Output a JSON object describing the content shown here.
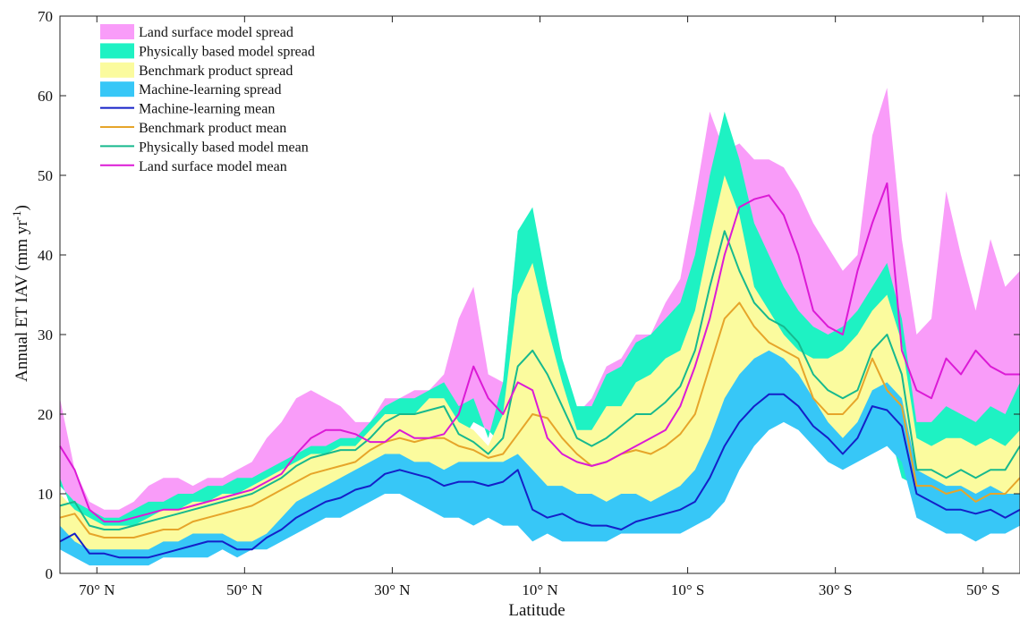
{
  "chart_data": {
    "type": "area",
    "xlabel": "Latitude",
    "ylabel": "Annual ET IAV (mm yr",
    "ylabel_sup": "-1",
    "ylabel_end": ")",
    "xlim": [
      75,
      -55
    ],
    "ylim": [
      0,
      70
    ],
    "x_tick_values": [
      70,
      50,
      30,
      10,
      -10,
      -30,
      -50
    ],
    "x_tick_labels": [
      "70° N",
      "50° N",
      "30° N",
      "10° N",
      "10° S",
      "30° S",
      "50° S"
    ],
    "y_ticks": [
      0,
      10,
      20,
      30,
      40,
      50,
      60,
      70
    ],
    "legend_position": "top-left",
    "lat": [
      75,
      73,
      71,
      69,
      67,
      65,
      63,
      61,
      59,
      57,
      55,
      53,
      51,
      49,
      47,
      45,
      43,
      41,
      39,
      37,
      35,
      33,
      31,
      29,
      27,
      25,
      23,
      21,
      19,
      17,
      15,
      13,
      11,
      9,
      7,
      5,
      3,
      1,
      -1,
      -3,
      -5,
      -7,
      -9,
      -11,
      -13,
      -15,
      -17,
      -19,
      -21,
      -23,
      -25,
      -27,
      -29,
      -31,
      -33,
      -35,
      -37,
      -39,
      -41,
      -43,
      -45,
      -47,
      -49,
      -51,
      -53,
      -55
    ],
    "series": [
      {
        "name": "Land surface model spread",
        "kind": "band",
        "color": "#f99cf9",
        "upper": [
          22,
          13,
          9,
          8,
          8,
          9,
          11,
          12,
          12,
          11,
          12,
          12,
          13,
          14,
          17,
          19,
          22,
          23,
          22,
          21,
          19,
          19,
          22,
          22,
          23,
          23,
          25,
          32,
          36,
          25,
          24,
          43,
          44,
          33,
          26,
          20,
          22,
          26,
          27,
          30,
          30,
          34,
          37,
          47,
          58,
          53,
          54,
          52,
          52,
          51,
          48,
          44,
          41,
          38,
          40,
          55,
          61,
          42,
          30,
          32,
          48,
          40,
          33,
          42,
          36,
          38
        ],
        "lower": [
          12,
          7,
          6,
          6,
          5,
          5,
          6,
          7,
          7,
          7,
          8,
          8,
          9,
          10,
          11,
          12,
          13,
          14,
          14,
          14,
          15,
          16,
          17,
          16,
          14,
          15,
          14,
          16,
          19,
          18,
          16,
          18,
          20,
          16,
          14,
          13,
          12,
          11,
          10,
          11,
          12,
          14,
          17,
          22,
          28,
          32,
          30,
          27,
          24,
          22,
          20,
          18,
          17,
          16,
          17,
          18,
          19,
          12,
          11,
          11,
          13,
          14,
          12,
          14,
          13,
          15
        ]
      },
      {
        "name": "Physically based model spread",
        "kind": "band",
        "color": "#1ef2c3",
        "upper": [
          11,
          9,
          8,
          7,
          7,
          8,
          9,
          9,
          10,
          10,
          11,
          11,
          12,
          12,
          13,
          14,
          15,
          16,
          16,
          17,
          17,
          19,
          21,
          22,
          22,
          23,
          24,
          21,
          22,
          17,
          24,
          43,
          46,
          36,
          27,
          21,
          21,
          25,
          26,
          29,
          30,
          32,
          34,
          40,
          50,
          58,
          52,
          44,
          40,
          36,
          33,
          31,
          30,
          31,
          33,
          36,
          39,
          32,
          19,
          19,
          21,
          20,
          19,
          21,
          20,
          24
        ]
      },
      {
        "name": "Benchmark product spread",
        "kind": "band",
        "color": "#fbfb9e",
        "upper": [
          10,
          8,
          7,
          6,
          6,
          6,
          7,
          8,
          8,
          9,
          9,
          10,
          10,
          11,
          12,
          13,
          14,
          15,
          15,
          16,
          16,
          18,
          20,
          20,
          20,
          22,
          22,
          19,
          18,
          16,
          20,
          35,
          39,
          31,
          24,
          18,
          18,
          21,
          21,
          24,
          25,
          27,
          28,
          33,
          42,
          50,
          45,
          36,
          33,
          30,
          28,
          27,
          27,
          28,
          30,
          33,
          35,
          29,
          17,
          16,
          17,
          17,
          16,
          17,
          16,
          18
        ],
        "lower": [
          5,
          3,
          2,
          2,
          2,
          2,
          2,
          2,
          3,
          3,
          3,
          3,
          3,
          4,
          5,
          6,
          7,
          8,
          9,
          9,
          10,
          11,
          12,
          12,
          11,
          11,
          12,
          11,
          10,
          10,
          10,
          8,
          4,
          6,
          5,
          5,
          5,
          5,
          6,
          5,
          6,
          6,
          6,
          7,
          9,
          12,
          16,
          20,
          22,
          23,
          21,
          19,
          17,
          14,
          15,
          16,
          17,
          16,
          8,
          8,
          7,
          7,
          7,
          8,
          7,
          7
        ]
      },
      {
        "name": "Machine-learning spread",
        "kind": "band",
        "color": "#37c7f7",
        "upper": [
          6,
          4,
          3,
          3,
          3,
          3,
          3,
          4,
          4,
          5,
          5,
          5,
          4,
          4,
          5,
          7,
          9,
          10,
          11,
          12,
          13,
          14,
          15,
          15,
          14,
          14,
          13,
          14,
          14,
          14,
          14,
          15,
          13,
          11,
          11,
          10,
          10,
          9,
          10,
          10,
          9,
          10,
          11,
          13,
          17,
          22,
          25,
          27,
          28,
          27,
          25,
          22,
          19,
          17,
          19,
          23,
          24,
          22,
          13,
          12,
          11,
          11,
          10,
          11,
          10,
          10
        ],
        "lower": [
          3,
          2,
          1,
          1,
          1,
          1,
          1,
          2,
          2,
          2,
          2,
          3,
          2,
          3,
          3,
          4,
          5,
          6,
          7,
          7,
          8,
          9,
          10,
          10,
          9,
          8,
          7,
          7,
          6,
          7,
          6,
          6,
          4,
          5,
          4,
          4,
          4,
          4,
          5,
          5,
          5,
          5,
          5,
          6,
          7,
          9,
          13,
          16,
          18,
          19,
          18,
          16,
          14,
          13,
          14,
          15,
          16,
          14,
          7,
          6,
          5,
          5,
          4,
          5,
          5,
          6
        ]
      },
      {
        "name": "Machine-learning mean",
        "kind": "line",
        "color": "#1420c8",
        "values": [
          4,
          5,
          2.5,
          2.5,
          2,
          2,
          2,
          2.5,
          3,
          3.5,
          4,
          4,
          3,
          3,
          4.5,
          5.5,
          7,
          8,
          9,
          9.5,
          10.5,
          11,
          12.5,
          13,
          12.5,
          12,
          11,
          11.5,
          11.5,
          11,
          11.5,
          13,
          8,
          7,
          7.5,
          6.5,
          6,
          6,
          5.5,
          6.5,
          7,
          7.5,
          8,
          9,
          12,
          16,
          19,
          21,
          22.5,
          22.5,
          21,
          18.5,
          17,
          15,
          17,
          21,
          20.5,
          18.5,
          10,
          9,
          8,
          8,
          7.5,
          8,
          7,
          8
        ]
      },
      {
        "name": "Benchmark product mean",
        "kind": "line",
        "color": "#e6a52a",
        "values": [
          7,
          7.5,
          5,
          4.5,
          4.5,
          4.5,
          5,
          5.5,
          5.5,
          6.5,
          7,
          7.5,
          8,
          8.5,
          9.5,
          10.5,
          11.5,
          12.5,
          13,
          13.5,
          14,
          15.5,
          16.5,
          17,
          16.5,
          17,
          17,
          16,
          15.5,
          14.5,
          15,
          17.5,
          20,
          19.5,
          17,
          15,
          13.5,
          14,
          15,
          15.5,
          15,
          16,
          17.5,
          20,
          26,
          32,
          34,
          31,
          29,
          28,
          27,
          22,
          20,
          20,
          22,
          27,
          23,
          21,
          11,
          11,
          10,
          10.5,
          9,
          10,
          10,
          12
        ]
      },
      {
        "name": "Physically based model mean",
        "kind": "line",
        "color": "#17b98e",
        "values": [
          8.5,
          9,
          6,
          5.5,
          5.5,
          6,
          6.5,
          7,
          7.5,
          8,
          8.5,
          9,
          9.5,
          10,
          11,
          12,
          13.5,
          14.5,
          15,
          15.5,
          15.5,
          17,
          19,
          20,
          20,
          20.5,
          21,
          17.5,
          16.5,
          15,
          17,
          26,
          28,
          25,
          21,
          17,
          16,
          17,
          18.5,
          20,
          20,
          21.5,
          23.5,
          28,
          36,
          43,
          38,
          34,
          32,
          31,
          29,
          25,
          23,
          22,
          23,
          28,
          30,
          25,
          13,
          13,
          12,
          13,
          12,
          13,
          13,
          16
        ]
      },
      {
        "name": "Land surface model mean",
        "kind": "line",
        "color": "#dc1ad6",
        "values": [
          16,
          13,
          8,
          6.5,
          6.5,
          7,
          7.5,
          8,
          8,
          8.5,
          9,
          9.5,
          10,
          10.5,
          11.5,
          12.5,
          15,
          17,
          18,
          18,
          17.5,
          16.5,
          16.5,
          18,
          17,
          17,
          17.5,
          20,
          26,
          22,
          20,
          24,
          23,
          17,
          15,
          14,
          13.5,
          14,
          15,
          16,
          17,
          18,
          21,
          26,
          32,
          40,
          46,
          47,
          47.5,
          45,
          40,
          33,
          31,
          30,
          38,
          44,
          49,
          28,
          23,
          22,
          27,
          25,
          28,
          26,
          25,
          25
        ]
      }
    ]
  }
}
